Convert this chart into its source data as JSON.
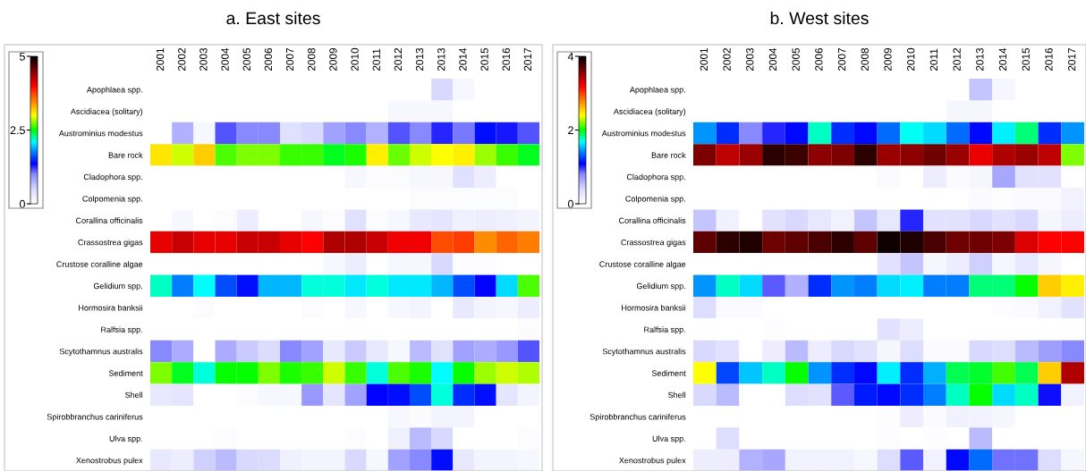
{
  "chart_data": [
    {
      "type": "heatmap",
      "title": "a. East sites",
      "categories": [
        "2001",
        "2002",
        "2003",
        "2004",
        "2005",
        "2006",
        "2007",
        "2008",
        "2009",
        "2010",
        "2011",
        "2012",
        "2013",
        "2013",
        "2014",
        "2015",
        "2016",
        "2017"
      ],
      "y_categories": [
        "Apophlaea spp.",
        "Ascidiacea (solitary)",
        "Austrominius modestus",
        "Bare rock",
        "Cladophora spp.",
        "Colpomenia spp.",
        "Corallina officinalis",
        "Crassostrea gigas",
        "Crustose coralline algae",
        "Gelidium spp.",
        "Hormosira banksii",
        "Ralfsia spp.",
        "Scytothamnus australis",
        "Sediment",
        "Shell",
        "Spirobbranchus cariniferus",
        "Ulva spp.",
        "Xenostrobus pulex"
      ],
      "cells": [
        [
          0,
          0,
          0,
          0,
          0,
          0,
          0,
          0,
          0,
          0,
          0,
          0,
          0,
          0.5,
          0.1,
          0,
          0,
          0
        ],
        [
          0,
          0,
          0,
          0,
          0,
          0,
          0,
          0,
          0,
          0,
          0,
          0.1,
          0.1,
          0.1,
          0,
          0,
          0,
          0
        ],
        [
          0,
          0.75,
          0.1,
          1.15,
          1.0,
          1.0,
          0.4,
          0.5,
          0.85,
          1.0,
          0.75,
          1.15,
          1.0,
          1.25,
          1.05,
          1.4,
          1.3,
          1.15
        ],
        [
          3.1,
          2.9,
          3.2,
          2.65,
          2.75,
          2.75,
          2.6,
          2.6,
          2.45,
          2.55,
          3.05,
          2.7,
          2.9,
          3.0,
          3.05,
          2.8,
          2.6,
          2.45
        ],
        [
          0,
          0,
          0,
          0,
          0,
          0,
          0,
          0,
          0,
          0.1,
          0.05,
          0.05,
          0.1,
          0.1,
          0.4,
          0.25,
          0,
          0
        ],
        [
          0,
          0,
          0,
          0,
          0,
          0,
          0,
          0,
          0,
          0,
          0,
          0,
          0.05,
          0.05,
          0.05,
          0.05,
          0.05,
          0
        ],
        [
          0,
          0.1,
          0,
          0.05,
          0.25,
          0,
          0,
          0.1,
          0.05,
          0.4,
          0.05,
          0.1,
          0.3,
          0.35,
          0.2,
          0.25,
          0.2,
          0.15
        ],
        [
          4.1,
          4.2,
          4.1,
          4.1,
          4.2,
          4.2,
          4.1,
          4.0,
          4.3,
          4.3,
          4.2,
          4.05,
          4.05,
          3.7,
          3.75,
          3.45,
          3.6,
          3.5
        ],
        [
          0,
          0,
          0,
          0,
          0,
          0,
          0,
          0,
          0.1,
          0.25,
          0,
          0.1,
          0.1,
          0.5,
          0.05,
          0.05,
          0,
          0
        ],
        [
          2.2,
          1.75,
          2.1,
          1.6,
          1.4,
          1.9,
          1.9,
          2.15,
          2.15,
          2.05,
          2.15,
          2.05,
          2.05,
          1.9,
          1.6,
          1.35,
          2.0,
          2.65
        ],
        [
          0,
          0,
          0.05,
          0,
          0,
          0,
          0,
          0.05,
          0,
          0.1,
          0,
          0.1,
          0.15,
          0,
          0.3,
          0.15,
          0.1,
          0.25
        ],
        [
          0,
          0,
          0,
          0,
          0,
          0,
          0,
          0,
          0,
          0,
          0,
          0,
          0,
          0,
          0,
          0,
          0,
          0.05
        ],
        [
          1.0,
          0.8,
          0,
          0.8,
          0.6,
          0.45,
          1.0,
          0.85,
          0.3,
          0.6,
          0.3,
          0.1,
          0.7,
          0.4,
          0.85,
          0.8,
          0.9,
          1.15
        ],
        [
          2.75,
          2.45,
          2.15,
          2.5,
          2.5,
          2.75,
          2.55,
          2.6,
          2.9,
          2.6,
          2.15,
          2.65,
          2.55,
          2.1,
          2.5,
          2.8,
          2.9,
          2.85
        ],
        [
          0.3,
          0.35,
          0,
          0,
          0.05,
          0.1,
          0.1,
          0.9,
          0.35,
          0.85,
          1.35,
          1.4,
          1.6,
          2.15,
          1.5,
          1.4,
          0.35,
          0.15
        ],
        [
          0,
          0,
          0,
          0,
          0,
          0,
          0,
          0,
          0,
          0,
          0,
          0.1,
          0.05,
          0.15,
          0.15,
          0,
          0,
          0
        ],
        [
          0,
          0,
          0,
          0.05,
          0,
          0,
          0,
          0,
          0,
          0.05,
          0,
          0.2,
          0.7,
          0.5,
          0,
          0,
          0,
          0.05
        ],
        [
          0.3,
          0.25,
          0.55,
          0.7,
          0.5,
          0.45,
          0.2,
          0.15,
          0.15,
          0.5,
          0.1,
          0.85,
          1.0,
          1.4,
          0.3,
          0.15,
          0.15,
          0.1
        ]
      ],
      "clim": [
        0,
        5
      ],
      "cticks": [
        0,
        2.5,
        5
      ]
    },
    {
      "type": "heatmap",
      "title": "b. West sites",
      "categories": [
        "2001",
        "2002",
        "2003",
        "2004",
        "2005",
        "2006",
        "2007",
        "2008",
        "2009",
        "2010",
        "2011",
        "2012",
        "2013",
        "2014",
        "2015",
        "2016",
        "2017"
      ],
      "y_categories": [
        "Apophlaea spp.",
        "Ascidiacea (solitary)",
        "Austrominius modestus",
        "Bare rock",
        "Cladophora spp.",
        "Colpomenia spp.",
        "Corallina officinalis",
        "Crassostrea gigas",
        "Crustose coralline algae",
        "Gelidium spp.",
        "Hormosira banksii",
        "Ralfsia spp.",
        "Scytothamnus australis",
        "Sediment",
        "Shell",
        "Spirobbranchus cariniferus",
        "Ulva spp.",
        "Xenostrobus pulex"
      ],
      "cells": [
        [
          0,
          0,
          0,
          0,
          0,
          0,
          0,
          0,
          0,
          0,
          0,
          0,
          0.5,
          0.1,
          0,
          0,
          0
        ],
        [
          0,
          0,
          0,
          0,
          0,
          0,
          0,
          0,
          0,
          0,
          0,
          0.1,
          0.1,
          0,
          0,
          0,
          0
        ],
        [
          1.45,
          1.2,
          0.8,
          1.0,
          1.1,
          1.75,
          1.2,
          1.1,
          1.35,
          1.7,
          1.6,
          1.35,
          1.1,
          1.65,
          1.85,
          1.2,
          1.45
        ],
        [
          3.6,
          3.4,
          3.5,
          3.85,
          3.8,
          3.55,
          3.6,
          3.85,
          3.5,
          3.55,
          3.65,
          3.5,
          3.25,
          3.45,
          3.5,
          3.4,
          2.2
        ],
        [
          0,
          0,
          0,
          0,
          0,
          0,
          0,
          0,
          0.05,
          0,
          0.2,
          0.05,
          0.1,
          0.65,
          0.3,
          0.3,
          0
        ],
        [
          0,
          0,
          0,
          0,
          0,
          0,
          0,
          0,
          0,
          0,
          0,
          0,
          0.05,
          0.03,
          0.05,
          0.05,
          0.15
        ],
        [
          0.5,
          0.15,
          0,
          0.3,
          0.4,
          0.25,
          0.15,
          0.5,
          0.25,
          1.0,
          0.3,
          0.3,
          0.4,
          0.3,
          0.4,
          0.1,
          0.2
        ],
        [
          3.7,
          3.85,
          3.9,
          3.65,
          3.7,
          3.75,
          3.85,
          3.7,
          3.95,
          3.9,
          3.75,
          3.65,
          3.65,
          3.6,
          3.3,
          3.2,
          3.2
        ],
        [
          0,
          0,
          0,
          0,
          0,
          0,
          0,
          0,
          0.3,
          0.5,
          0.1,
          0.2,
          0.45,
          0.1,
          0.25,
          0.1,
          0
        ],
        [
          1.45,
          1.75,
          1.6,
          0.9,
          0.6,
          1.2,
          1.45,
          1.4,
          1.6,
          1.65,
          1.4,
          1.4,
          1.85,
          1.85,
          2.0,
          2.55,
          2.45
        ],
        [
          0.35,
          0.05,
          0.05,
          0,
          0,
          0,
          0,
          0,
          0,
          0,
          0,
          0,
          0,
          0.03,
          0.05,
          0.15,
          0.3
        ],
        [
          0,
          0,
          0,
          0.03,
          0,
          0,
          0,
          0,
          0.3,
          0.2,
          0,
          0,
          0,
          0,
          0,
          0,
          0
        ],
        [
          0.4,
          0.3,
          0,
          0.2,
          0.55,
          0.2,
          0.4,
          0.3,
          0.1,
          0.35,
          0.05,
          0.05,
          0.4,
          0.35,
          0.55,
          0.7,
          0.8
        ],
        [
          2.4,
          1.25,
          1.55,
          1.75,
          2.0,
          1.45,
          1.2,
          1.1,
          1.65,
          1.2,
          1.5,
          1.9,
          1.95,
          2.1,
          1.9,
          2.55,
          3.45
        ],
        [
          0.4,
          0.55,
          0,
          0,
          0.35,
          0.3,
          0.9,
          1.15,
          1.1,
          1.2,
          1.4,
          1.75,
          2.0,
          1.6,
          1.75,
          1.05,
          0.15
        ],
        [
          0,
          0,
          0,
          0,
          0,
          0,
          0,
          0,
          0.03,
          0.2,
          0.05,
          0.15,
          0.15,
          0.1,
          0,
          0,
          0
        ],
        [
          0,
          0.35,
          0,
          0,
          0,
          0,
          0,
          0,
          0.03,
          0,
          0.03,
          0,
          0.55,
          0,
          0,
          0,
          0
        ],
        [
          0.2,
          0.2,
          0.6,
          0.65,
          0.15,
          0.15,
          0.15,
          0.08,
          0.35,
          0.9,
          0.15,
          1.1,
          1.35,
          0.85,
          0.85,
          0.35,
          0.1
        ]
      ],
      "clim": [
        0,
        4
      ],
      "cticks": [
        0,
        2,
        4
      ]
    }
  ]
}
